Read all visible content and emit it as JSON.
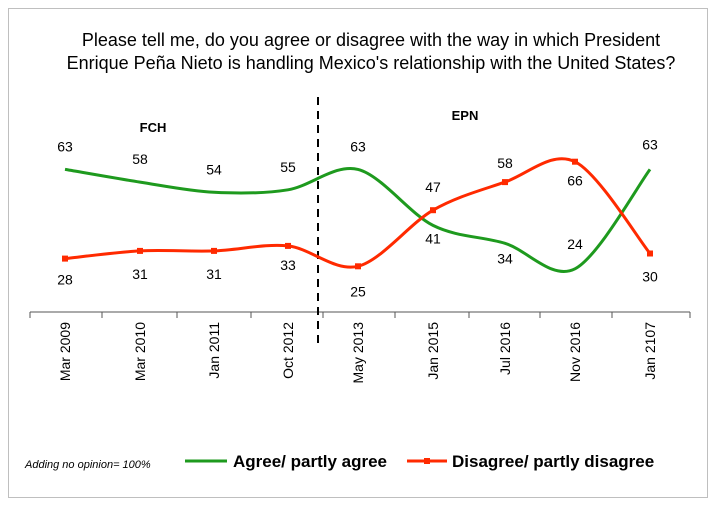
{
  "chart_data": {
    "type": "line",
    "title_lines": [
      "Please tell me, do you agree or disagree with the way in which President",
      "Enrique Peña Nieto is handling Mexico's relationship with the United States?"
    ],
    "categories": [
      "Mar 2009",
      "Mar 2010",
      "Jan 2011",
      "Oct 2012",
      "May 2013",
      "Jan 2015",
      "Jul 2016",
      "Nov 2016",
      "Jan 2107"
    ],
    "series": [
      {
        "name": "Agree/ partly agree",
        "color": "#1e9a1e",
        "values": [
          63,
          58,
          54,
          55,
          63,
          41,
          34,
          24,
          63
        ]
      },
      {
        "name": "Disagree/ partly disagree",
        "color": "#ff2a00",
        "values": [
          28,
          31,
          31,
          33,
          25,
          47,
          58,
          66,
          30
        ]
      }
    ],
    "periods": [
      {
        "label": "FCH"
      },
      {
        "label": "EPN"
      }
    ],
    "note": "Adding no opinion= 100%",
    "grid": false
  }
}
